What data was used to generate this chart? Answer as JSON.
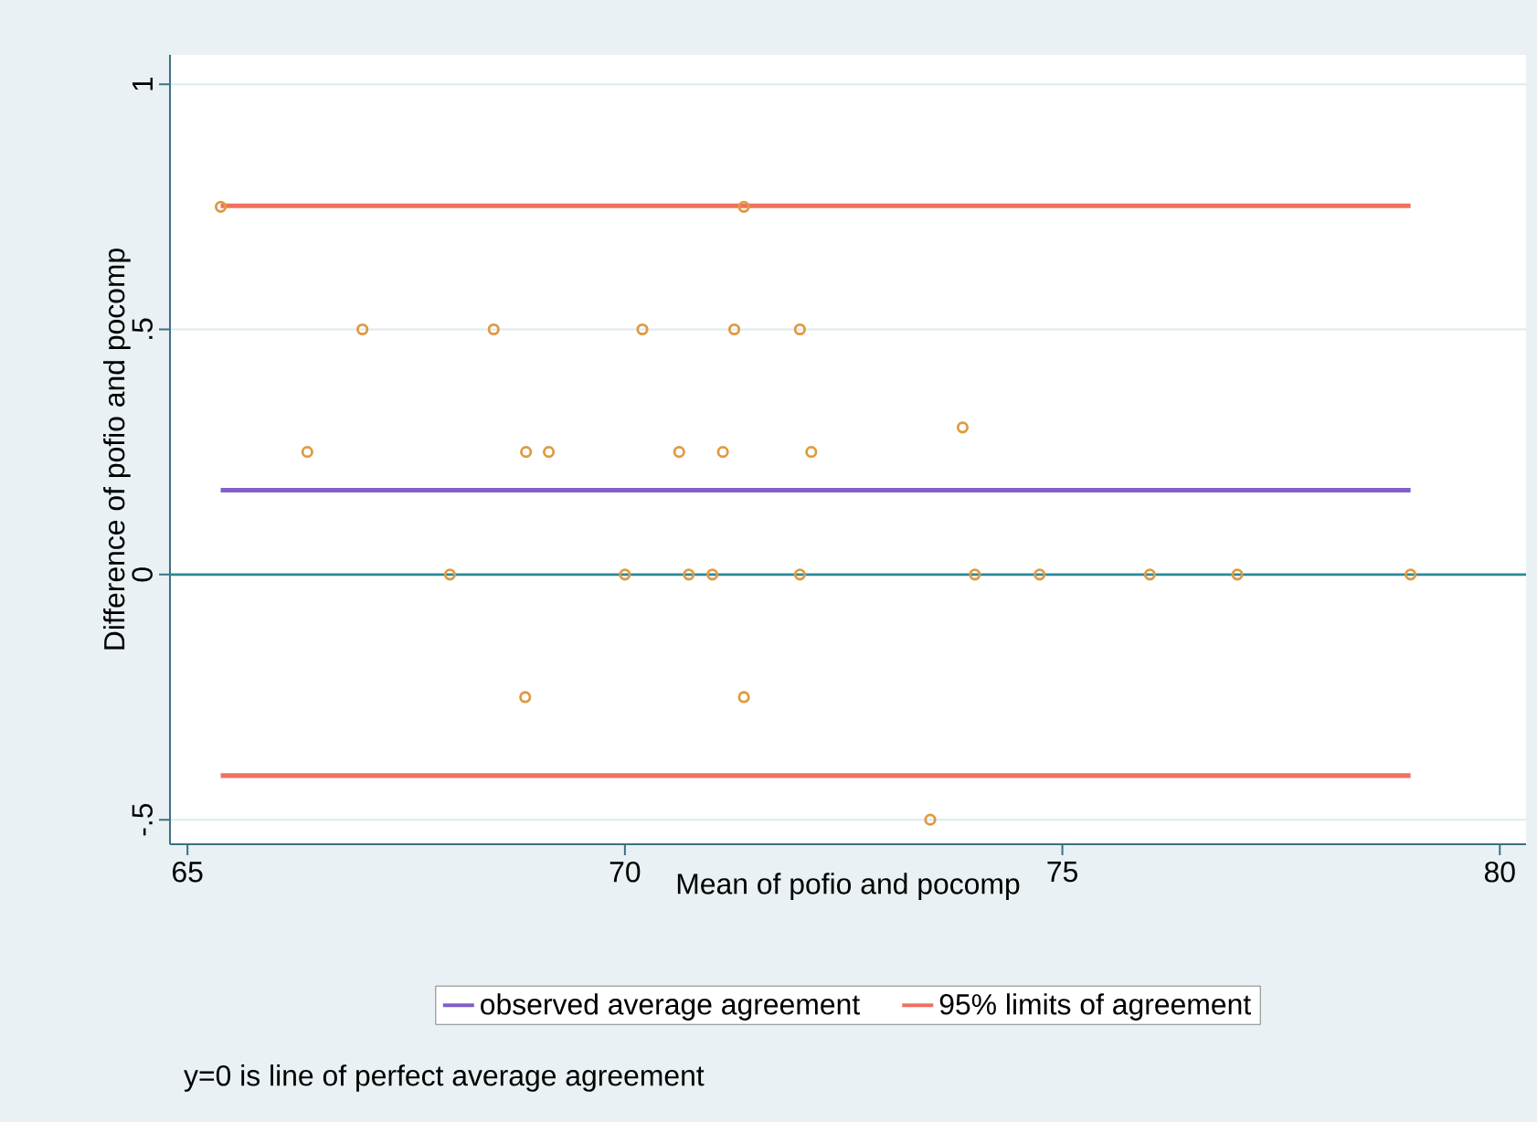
{
  "chart_data": {
    "type": "scatter",
    "xlabel": "Mean of pofio and pocomp",
    "ylabel": "Difference of pofio and pocomp",
    "annotations": [
      "y=0 is line of perfect average agreement"
    ],
    "series": [
      {
        "color": "#e09a40",
        "x": [
          65.38,
          71.36,
          67.0,
          68.5,
          70.2,
          71.25,
          72.0,
          66.37,
          68.87,
          69.13,
          70.62,
          71.12,
          72.13,
          73.86,
          68.0,
          70.0,
          70.73,
          71.0,
          72.0,
          74.0,
          74.74,
          76.0,
          77.0,
          78.98,
          68.86,
          71.36,
          73.49
        ],
        "values": [
          0.75,
          0.75,
          0.5,
          0.5,
          0.5,
          0.5,
          0.5,
          0.25,
          0.25,
          0.25,
          0.25,
          0.25,
          0.25,
          0.3,
          0,
          0,
          0,
          0,
          0,
          0,
          0,
          0,
          0,
          0,
          -0.25,
          -0.25,
          -0.5
        ]
      },
      {
        "type": "line",
        "marker": "none",
        "name": "observed average agreement",
        "color": "#7f5fc8",
        "x": [
          65.38,
          78.98
        ],
        "values": [
          0.172,
          0.172
        ]
      },
      {
        "type": "line",
        "marker": "none",
        "name": "95% limits of agreement",
        "color": "#f07060",
        "x": [
          65.38,
          78.98
        ],
        "values": [
          0.752,
          0.752
        ]
      },
      {
        "type": "line",
        "marker": "none",
        "color": "#f07060",
        "x": [
          65.38,
          78.98
        ],
        "values": [
          -0.41,
          -0.41
        ]
      }
    ],
    "ref_lines": [
      {
        "axis": "y",
        "value": 0,
        "color": "#2a8a9a"
      }
    ],
    "xlim": [
      64.8,
      80.3
    ],
    "ylim": [
      -0.55,
      1.06
    ],
    "xticks": [
      65,
      70,
      75,
      80
    ],
    "yticks": [
      {
        "value": -0.5,
        "label": "-.5"
      },
      0,
      {
        "value": 0.5,
        "label": ".5"
      },
      1
    ],
    "grid": "y",
    "legend": "bottom",
    "marker": "circle"
  }
}
